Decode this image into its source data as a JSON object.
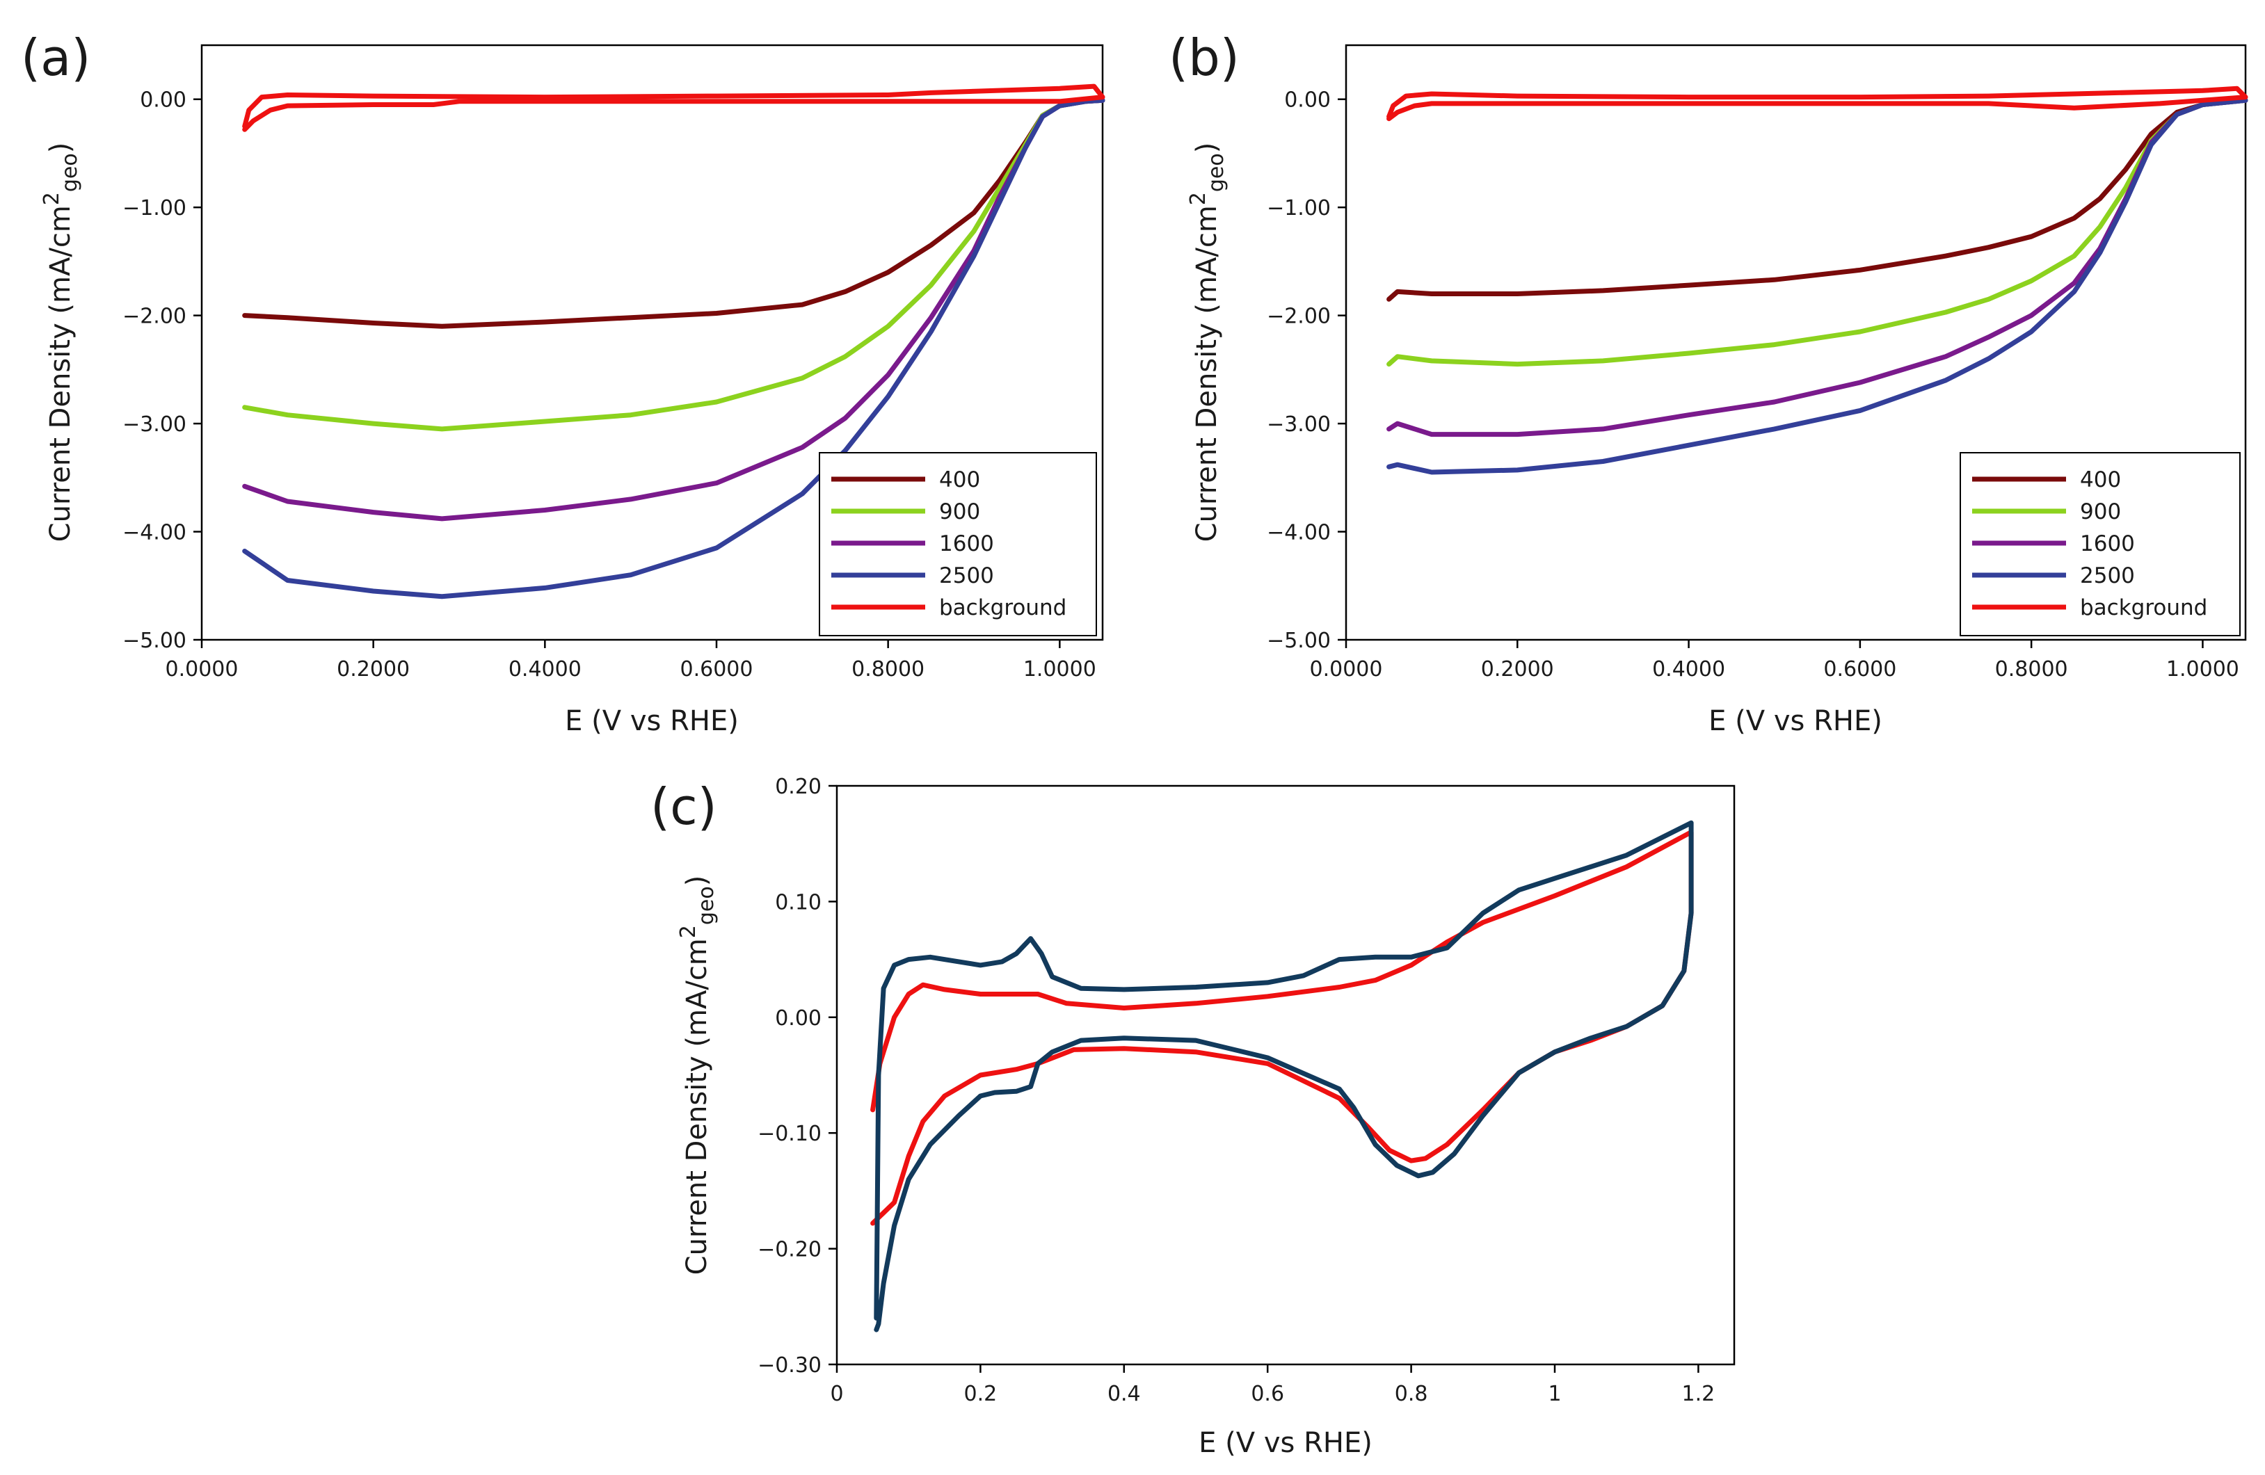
{
  "chart_data": [
    {
      "id": "a",
      "panel_label": "(a)",
      "type": "line",
      "xlabel": "E (V vs RHE)",
      "ylabel": "Current Density (mA/cm",
      "ylabel_sup": "2",
      "ylabel_sub": "geo",
      "ylabel_end": ")",
      "xlim": [
        0,
        1.05
      ],
      "ylim": [
        -5,
        0.5
      ],
      "xticks": [
        0,
        0.2,
        0.4,
        0.6,
        0.8,
        1.0
      ],
      "xtick_labels": [
        "0.0000",
        "0.2000",
        "0.4000",
        "0.6000",
        "0.8000",
        "1.0000"
      ],
      "yticks": [
        0,
        -1,
        -2,
        -3,
        -4,
        -5
      ],
      "ytick_labels": [
        "0.00",
        "−1.00",
        "−2.00",
        "−3.00",
        "−4.00",
        "−5.00"
      ],
      "legend_position": "bottom-right",
      "series": [
        {
          "name": "400",
          "color": "#7a0a0a",
          "x": [
            0.05,
            0.1,
            0.2,
            0.28,
            0.4,
            0.5,
            0.6,
            0.7,
            0.75,
            0.8,
            0.85,
            0.9,
            0.93,
            0.96,
            0.98,
            1.0,
            1.03,
            1.05
          ],
          "y": [
            -2.0,
            -2.02,
            -2.07,
            -2.1,
            -2.06,
            -2.02,
            -1.98,
            -1.9,
            -1.78,
            -1.6,
            -1.35,
            -1.05,
            -0.75,
            -0.4,
            -0.15,
            -0.06,
            -0.02,
            -0.01
          ]
        },
        {
          "name": "900",
          "color": "#8cd21e",
          "x": [
            0.05,
            0.1,
            0.2,
            0.28,
            0.4,
            0.5,
            0.6,
            0.7,
            0.75,
            0.8,
            0.85,
            0.9,
            0.93,
            0.96,
            0.98,
            1.0,
            1.03,
            1.05
          ],
          "y": [
            -2.85,
            -2.92,
            -3.0,
            -3.05,
            -2.98,
            -2.92,
            -2.8,
            -2.58,
            -2.38,
            -2.1,
            -1.72,
            -1.22,
            -0.82,
            -0.42,
            -0.15,
            -0.06,
            -0.02,
            -0.01
          ]
        },
        {
          "name": "1600",
          "color": "#7a1a8c",
          "x": [
            0.05,
            0.1,
            0.2,
            0.28,
            0.4,
            0.5,
            0.6,
            0.7,
            0.75,
            0.8,
            0.85,
            0.9,
            0.93,
            0.96,
            0.98,
            1.0,
            1.03,
            1.05
          ],
          "y": [
            -3.58,
            -3.72,
            -3.82,
            -3.88,
            -3.8,
            -3.7,
            -3.55,
            -3.22,
            -2.95,
            -2.55,
            -2.02,
            -1.4,
            -0.9,
            -0.45,
            -0.16,
            -0.06,
            -0.02,
            -0.01
          ]
        },
        {
          "name": "2500",
          "color": "#333f99",
          "x": [
            0.05,
            0.1,
            0.2,
            0.28,
            0.4,
            0.5,
            0.6,
            0.7,
            0.75,
            0.8,
            0.85,
            0.9,
            0.93,
            0.96,
            0.98,
            1.0,
            1.03,
            1.05
          ],
          "y": [
            -4.18,
            -4.45,
            -4.55,
            -4.6,
            -4.52,
            -4.4,
            -4.15,
            -3.65,
            -3.25,
            -2.75,
            -2.15,
            -1.45,
            -0.95,
            -0.45,
            -0.16,
            -0.06,
            -0.02,
            -0.01
          ]
        },
        {
          "name": "background",
          "color": "#ee1111",
          "x": [
            0.05,
            0.06,
            0.08,
            0.1,
            0.2,
            0.27,
            0.3,
            0.4,
            0.6,
            0.8,
            1.0,
            1.05,
            1.04,
            1.0,
            0.85,
            0.8,
            0.6,
            0.4,
            0.2,
            0.1,
            0.07,
            0.055,
            0.05
          ],
          "y": [
            -0.28,
            -0.2,
            -0.1,
            -0.06,
            -0.05,
            -0.05,
            -0.02,
            -0.02,
            -0.02,
            -0.02,
            -0.02,
            0.02,
            0.12,
            0.1,
            0.06,
            0.04,
            0.03,
            0.02,
            0.03,
            0.04,
            0.02,
            -0.1,
            -0.25
          ]
        }
      ]
    },
    {
      "id": "b",
      "panel_label": "(b)",
      "type": "line",
      "xlabel": "E (V vs RHE)",
      "ylabel": "Current Density (mA/cm",
      "ylabel_sup": "2",
      "ylabel_sub": "geo",
      "ylabel_end": ")",
      "xlim": [
        0,
        1.05
      ],
      "ylim": [
        -5,
        0.5
      ],
      "xticks": [
        0,
        0.2,
        0.4,
        0.6,
        0.8,
        1.0
      ],
      "xtick_labels": [
        "0.0000",
        "0.2000",
        "0.4000",
        "0.6000",
        "0.8000",
        "1.0000"
      ],
      "yticks": [
        0,
        -1,
        -2,
        -3,
        -4,
        -5
      ],
      "ytick_labels": [
        "0.00",
        "−1.00",
        "−2.00",
        "−3.00",
        "−4.00",
        "−5.00"
      ],
      "legend_position": "bottom-right",
      "series": [
        {
          "name": "400",
          "color": "#7a0a0a",
          "x": [
            0.05,
            0.06,
            0.1,
            0.2,
            0.3,
            0.4,
            0.5,
            0.6,
            0.7,
            0.75,
            0.8,
            0.85,
            0.88,
            0.91,
            0.94,
            0.97,
            1.0,
            1.05
          ],
          "y": [
            -1.85,
            -1.78,
            -1.8,
            -1.8,
            -1.77,
            -1.72,
            -1.67,
            -1.58,
            -1.45,
            -1.37,
            -1.27,
            -1.1,
            -0.92,
            -0.65,
            -0.32,
            -0.12,
            -0.05,
            -0.01
          ]
        },
        {
          "name": "900",
          "color": "#8cd21e",
          "x": [
            0.05,
            0.06,
            0.1,
            0.2,
            0.3,
            0.4,
            0.5,
            0.6,
            0.7,
            0.75,
            0.8,
            0.85,
            0.88,
            0.91,
            0.94,
            0.97,
            1.0,
            1.05
          ],
          "y": [
            -2.45,
            -2.38,
            -2.42,
            -2.45,
            -2.42,
            -2.35,
            -2.27,
            -2.15,
            -1.97,
            -1.85,
            -1.68,
            -1.45,
            -1.18,
            -0.82,
            -0.38,
            -0.14,
            -0.05,
            -0.01
          ]
        },
        {
          "name": "1600",
          "color": "#7a1a8c",
          "x": [
            0.05,
            0.06,
            0.1,
            0.2,
            0.3,
            0.4,
            0.5,
            0.6,
            0.7,
            0.75,
            0.8,
            0.85,
            0.88,
            0.91,
            0.94,
            0.97,
            1.0,
            1.05
          ],
          "y": [
            -3.05,
            -3.0,
            -3.1,
            -3.1,
            -3.05,
            -2.92,
            -2.8,
            -2.62,
            -2.38,
            -2.2,
            -2.0,
            -1.7,
            -1.38,
            -0.92,
            -0.4,
            -0.14,
            -0.05,
            -0.01
          ]
        },
        {
          "name": "2500",
          "color": "#333f99",
          "x": [
            0.05,
            0.06,
            0.1,
            0.2,
            0.3,
            0.4,
            0.5,
            0.6,
            0.7,
            0.75,
            0.8,
            0.85,
            0.88,
            0.91,
            0.94,
            0.97,
            1.0,
            1.05
          ],
          "y": [
            -3.4,
            -3.38,
            -3.45,
            -3.43,
            -3.35,
            -3.2,
            -3.05,
            -2.88,
            -2.6,
            -2.4,
            -2.15,
            -1.78,
            -1.42,
            -0.95,
            -0.42,
            -0.14,
            -0.05,
            -0.01
          ]
        },
        {
          "name": "background",
          "color": "#ee1111",
          "x": [
            0.05,
            0.06,
            0.08,
            0.1,
            0.2,
            0.4,
            0.6,
            0.75,
            0.85,
            0.95,
            1.05,
            1.04,
            1.0,
            0.85,
            0.75,
            0.6,
            0.4,
            0.2,
            0.1,
            0.07,
            0.055,
            0.05
          ],
          "y": [
            -0.18,
            -0.12,
            -0.06,
            -0.04,
            -0.04,
            -0.04,
            -0.04,
            -0.04,
            -0.08,
            -0.04,
            0.02,
            0.1,
            0.08,
            0.05,
            0.03,
            0.02,
            0.02,
            0.03,
            0.05,
            0.03,
            -0.06,
            -0.16
          ]
        }
      ]
    },
    {
      "id": "c",
      "panel_label": "(c)",
      "type": "line",
      "xlabel": "E (V vs RHE)",
      "ylabel": "Current Density (mA/cm",
      "ylabel_sup": "2",
      "ylabel_sub": "geo",
      "ylabel_end": ")",
      "xlim": [
        0,
        1.25
      ],
      "ylim": [
        -0.3,
        0.2
      ],
      "xticks": [
        0,
        0.2,
        0.4,
        0.6,
        0.8,
        1.0,
        1.2
      ],
      "xtick_labels": [
        "0",
        "0.2",
        "0.4",
        "0.6",
        "0.8",
        "1",
        "1.2"
      ],
      "yticks": [
        0.2,
        0.1,
        0,
        -0.1,
        -0.2,
        -0.3
      ],
      "ytick_labels": [
        "0.20",
        "0.10",
        "0.00",
        "−0.10",
        "−0.20",
        "−0.30"
      ],
      "series": [
        {
          "name": "",
          "color": "#ee1111",
          "x": [
            0.05,
            0.06,
            0.08,
            0.1,
            0.12,
            0.15,
            0.2,
            0.25,
            0.28,
            0.32,
            0.4,
            0.5,
            0.6,
            0.7,
            0.75,
            0.8,
            0.85,
            0.9,
            1.0,
            1.1,
            1.19,
            1.19,
            1.18,
            1.15,
            1.1,
            1.05,
            1.0,
            0.95,
            0.9,
            0.85,
            0.82,
            0.8,
            0.77,
            0.74,
            0.7,
            0.6,
            0.5,
            0.4,
            0.33,
            0.28,
            0.25,
            0.2,
            0.15,
            0.12,
            0.1,
            0.08,
            0.06,
            0.05
          ],
          "y": [
            -0.08,
            -0.04,
            0.0,
            0.02,
            0.028,
            0.024,
            0.02,
            0.02,
            0.02,
            0.012,
            0.008,
            0.012,
            0.018,
            0.026,
            0.032,
            0.045,
            0.065,
            0.082,
            0.105,
            0.13,
            0.16,
            0.09,
            0.04,
            0.01,
            -0.008,
            -0.02,
            -0.03,
            -0.048,
            -0.08,
            -0.11,
            -0.122,
            -0.124,
            -0.115,
            -0.095,
            -0.07,
            -0.04,
            -0.03,
            -0.027,
            -0.028,
            -0.04,
            -0.045,
            -0.05,
            -0.068,
            -0.09,
            -0.12,
            -0.16,
            -0.172,
            -0.178
          ]
        },
        {
          "name": "",
          "color": "#123a5c",
          "x": [
            0.055,
            0.058,
            0.065,
            0.08,
            0.1,
            0.13,
            0.17,
            0.2,
            0.23,
            0.25,
            0.27,
            0.285,
            0.3,
            0.34,
            0.4,
            0.5,
            0.6,
            0.65,
            0.7,
            0.75,
            0.8,
            0.85,
            0.9,
            0.95,
            1.0,
            1.1,
            1.19,
            1.19,
            1.18,
            1.15,
            1.1,
            1.05,
            1.0,
            0.95,
            0.9,
            0.86,
            0.83,
            0.81,
            0.78,
            0.75,
            0.72,
            0.7,
            0.6,
            0.5,
            0.4,
            0.34,
            0.3,
            0.28,
            0.27,
            0.25,
            0.22,
            0.2,
            0.17,
            0.13,
            0.1,
            0.08,
            0.065,
            0.058,
            0.055
          ],
          "y": [
            -0.26,
            -0.05,
            0.025,
            0.045,
            0.05,
            0.052,
            0.048,
            0.045,
            0.048,
            0.055,
            0.068,
            0.055,
            0.035,
            0.025,
            0.024,
            0.026,
            0.03,
            0.036,
            0.05,
            0.052,
            0.052,
            0.06,
            0.09,
            0.11,
            0.12,
            0.14,
            0.168,
            0.09,
            0.04,
            0.01,
            -0.008,
            -0.018,
            -0.03,
            -0.048,
            -0.085,
            -0.118,
            -0.134,
            -0.137,
            -0.128,
            -0.11,
            -0.078,
            -0.062,
            -0.035,
            -0.02,
            -0.018,
            -0.02,
            -0.03,
            -0.04,
            -0.06,
            -0.064,
            -0.065,
            -0.068,
            -0.085,
            -0.11,
            -0.14,
            -0.18,
            -0.23,
            -0.265,
            -0.27
          ]
        }
      ]
    }
  ]
}
